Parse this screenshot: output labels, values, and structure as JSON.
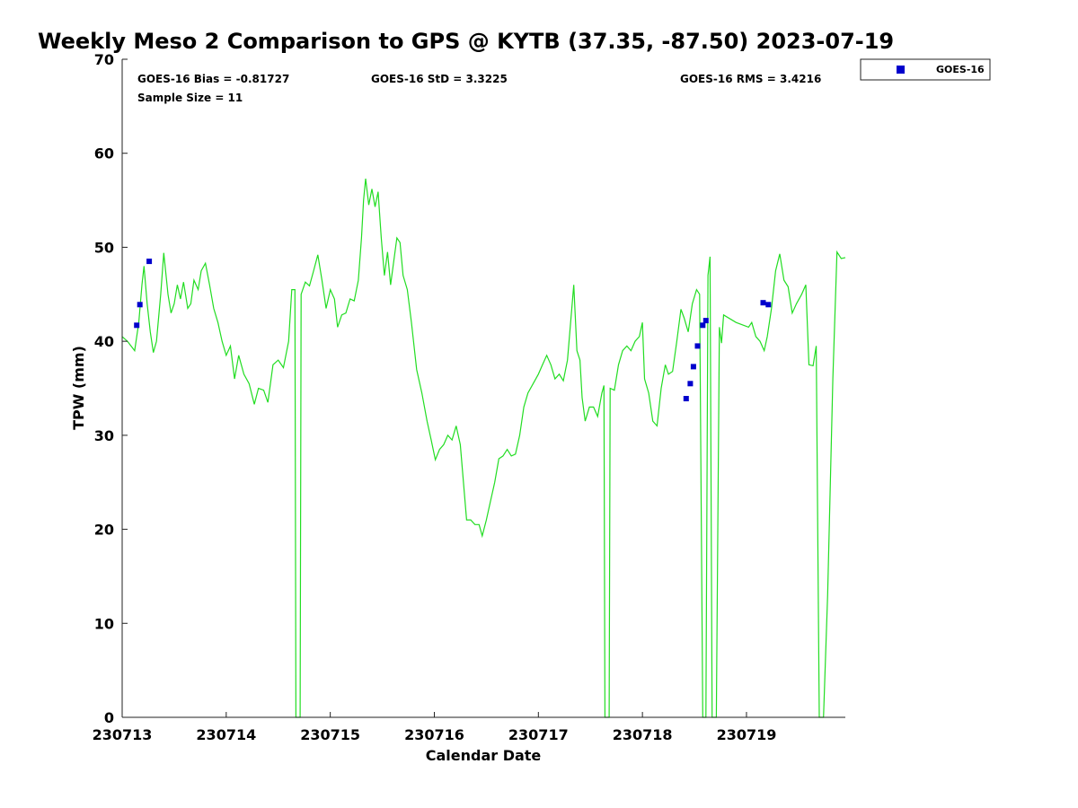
{
  "chart_data": {
    "type": "line",
    "title": "Weekly Meso 2 Comparison to GPS @ KYTB (37.35, -87.50) 2023-07-19",
    "xlabel": "Calendar Date",
    "ylabel": "TPW (mm)",
    "xlim": [
      230713.0,
      230719.95
    ],
    "ylim": [
      0,
      70
    ],
    "x_ticks": [
      {
        "value": 230713,
        "label": "230713"
      },
      {
        "value": 230714,
        "label": "230714"
      },
      {
        "value": 230715,
        "label": "230715"
      },
      {
        "value": 230716,
        "label": "230716"
      },
      {
        "value": 230717,
        "label": "230717"
      },
      {
        "value": 230718,
        "label": "230718"
      },
      {
        "value": 230719,
        "label": "230719"
      }
    ],
    "y_ticks": [
      0,
      10,
      20,
      30,
      40,
      50,
      60,
      70
    ],
    "grid": false,
    "legend_position": "outside-top-right",
    "stats": {
      "bias": "GOES-16 Bias = -0.81727",
      "std": "GOES-16 StD = 3.3225",
      "rms": "GOES-16 RMS = 3.4216",
      "sample": "Sample Size = 11"
    },
    "series": [
      {
        "kind": "line",
        "color": "#22dd22",
        "points": [
          [
            230713.0,
            40.5
          ],
          [
            230713.05,
            40.0
          ],
          [
            230713.12,
            39.0
          ],
          [
            230713.16,
            42.0
          ],
          [
            230713.19,
            46.0
          ],
          [
            230713.21,
            48.0
          ],
          [
            230713.24,
            44.0
          ],
          [
            230713.27,
            41.0
          ],
          [
            230713.3,
            38.8
          ],
          [
            230713.33,
            40.0
          ],
          [
            230713.37,
            45.0
          ],
          [
            230713.4,
            49.4
          ],
          [
            230713.44,
            45.0
          ],
          [
            230713.47,
            43.0
          ],
          [
            230713.5,
            44.0
          ],
          [
            230713.53,
            46.0
          ],
          [
            230713.56,
            44.5
          ],
          [
            230713.59,
            46.3
          ],
          [
            230713.63,
            43.5
          ],
          [
            230713.66,
            44.0
          ],
          [
            230713.69,
            46.5
          ],
          [
            230713.73,
            45.5
          ],
          [
            230713.76,
            47.5
          ],
          [
            230713.8,
            48.3
          ],
          [
            230713.84,
            46.0
          ],
          [
            230713.88,
            43.5
          ],
          [
            230713.92,
            42.0
          ],
          [
            230713.96,
            40.0
          ],
          [
            230714.0,
            38.5
          ],
          [
            230714.04,
            39.5
          ],
          [
            230714.08,
            36.0
          ],
          [
            230714.12,
            38.5
          ],
          [
            230714.17,
            36.5
          ],
          [
            230714.22,
            35.5
          ],
          [
            230714.27,
            33.3
          ],
          [
            230714.31,
            35.0
          ],
          [
            230714.36,
            34.8
          ],
          [
            230714.4,
            33.5
          ],
          [
            230714.45,
            37.5
          ],
          [
            230714.5,
            38.0
          ],
          [
            230714.55,
            37.2
          ],
          [
            230714.6,
            40.0
          ],
          [
            230714.63,
            45.5
          ],
          [
            230714.66,
            45.5
          ],
          [
            230714.67,
            0.0
          ],
          [
            230714.71,
            0.0
          ],
          [
            230714.72,
            45.0
          ],
          [
            230714.76,
            46.3
          ],
          [
            230714.8,
            45.9
          ],
          [
            230714.84,
            47.5
          ],
          [
            230714.88,
            49.2
          ],
          [
            230714.92,
            46.5
          ],
          [
            230714.96,
            43.5
          ],
          [
            230715.0,
            45.5
          ],
          [
            230715.04,
            44.5
          ],
          [
            230715.07,
            41.5
          ],
          [
            230715.11,
            42.8
          ],
          [
            230715.15,
            43.0
          ],
          [
            230715.19,
            44.5
          ],
          [
            230715.23,
            44.3
          ],
          [
            230715.27,
            46.5
          ],
          [
            230715.3,
            51.0
          ],
          [
            230715.32,
            55.0
          ],
          [
            230715.34,
            57.3
          ],
          [
            230715.37,
            54.5
          ],
          [
            230715.4,
            56.2
          ],
          [
            230715.43,
            54.3
          ],
          [
            230715.46,
            55.9
          ],
          [
            230715.49,
            51.0
          ],
          [
            230715.52,
            47.0
          ],
          [
            230715.55,
            49.5
          ],
          [
            230715.58,
            46.0
          ],
          [
            230715.61,
            48.5
          ],
          [
            230715.64,
            51.0
          ],
          [
            230715.67,
            50.5
          ],
          [
            230715.7,
            47.0
          ],
          [
            230715.74,
            45.5
          ],
          [
            230715.78,
            42.0
          ],
          [
            230715.83,
            37.0
          ],
          [
            230715.88,
            34.5
          ],
          [
            230715.93,
            31.5
          ],
          [
            230715.97,
            29.5
          ],
          [
            230716.01,
            27.4
          ],
          [
            230716.05,
            28.5
          ],
          [
            230716.09,
            29.0
          ],
          [
            230716.13,
            30.0
          ],
          [
            230716.17,
            29.5
          ],
          [
            230716.21,
            31.0
          ],
          [
            230716.25,
            29.0
          ],
          [
            230716.28,
            25.0
          ],
          [
            230716.31,
            21.0
          ],
          [
            230716.35,
            21.0
          ],
          [
            230716.39,
            20.5
          ],
          [
            230716.43,
            20.5
          ],
          [
            230716.46,
            19.3
          ],
          [
            230716.5,
            21.0
          ],
          [
            230716.54,
            23.0
          ],
          [
            230716.58,
            25.0
          ],
          [
            230716.62,
            27.5
          ],
          [
            230716.66,
            27.8
          ],
          [
            230716.7,
            28.5
          ],
          [
            230716.74,
            27.8
          ],
          [
            230716.78,
            28.0
          ],
          [
            230716.82,
            30.0
          ],
          [
            230716.86,
            33.0
          ],
          [
            230716.9,
            34.5
          ],
          [
            230716.95,
            35.5
          ],
          [
            230717.0,
            36.5
          ],
          [
            230717.04,
            37.5
          ],
          [
            230717.08,
            38.5
          ],
          [
            230717.12,
            37.5
          ],
          [
            230717.16,
            36.0
          ],
          [
            230717.2,
            36.5
          ],
          [
            230717.24,
            35.8
          ],
          [
            230717.28,
            38.0
          ],
          [
            230717.31,
            42.0
          ],
          [
            230717.34,
            46.0
          ],
          [
            230717.37,
            39.0
          ],
          [
            230717.4,
            38.0
          ],
          [
            230717.42,
            34.0
          ],
          [
            230717.45,
            31.5
          ],
          [
            230717.49,
            33.0
          ],
          [
            230717.53,
            33.0
          ],
          [
            230717.57,
            32.0
          ],
          [
            230717.61,
            34.5
          ],
          [
            230717.63,
            35.3
          ],
          [
            230717.64,
            0.0
          ],
          [
            230717.68,
            0.0
          ],
          [
            230717.69,
            35.0
          ],
          [
            230717.73,
            34.8
          ],
          [
            230717.77,
            37.5
          ],
          [
            230717.81,
            39.0
          ],
          [
            230717.85,
            39.5
          ],
          [
            230717.89,
            39.0
          ],
          [
            230717.93,
            40.0
          ],
          [
            230717.97,
            40.5
          ],
          [
            230718.0,
            42.0
          ],
          [
            230718.02,
            36.0
          ],
          [
            230718.06,
            34.5
          ],
          [
            230718.1,
            31.5
          ],
          [
            230718.14,
            31.0
          ],
          [
            230718.18,
            35.0
          ],
          [
            230718.22,
            37.5
          ],
          [
            230718.25,
            36.5
          ],
          [
            230718.29,
            36.8
          ],
          [
            230718.33,
            40.0
          ],
          [
            230718.37,
            43.4
          ],
          [
            230718.4,
            42.5
          ],
          [
            230718.44,
            41.0
          ],
          [
            230718.48,
            44.0
          ],
          [
            230718.52,
            45.5
          ],
          [
            230718.55,
            45.0
          ],
          [
            230718.58,
            0.0
          ],
          [
            230718.61,
            0.0
          ],
          [
            230718.63,
            47.0
          ],
          [
            230718.65,
            49.0
          ],
          [
            230718.67,
            0.0
          ],
          [
            230718.71,
            0.0
          ],
          [
            230718.74,
            41.5
          ],
          [
            230718.76,
            39.8
          ],
          [
            230718.78,
            42.8
          ],
          [
            230718.9,
            42.0
          ],
          [
            230719.02,
            41.5
          ],
          [
            230719.05,
            42.0
          ],
          [
            230719.09,
            40.5
          ],
          [
            230719.13,
            40.0
          ],
          [
            230719.17,
            39.0
          ],
          [
            230719.2,
            40.5
          ],
          [
            230719.24,
            43.5
          ],
          [
            230719.28,
            47.5
          ],
          [
            230719.32,
            49.3
          ],
          [
            230719.36,
            46.5
          ],
          [
            230719.4,
            45.8
          ],
          [
            230719.44,
            43.0
          ],
          [
            230719.48,
            44.0
          ],
          [
            230719.53,
            45.0
          ],
          [
            230719.57,
            46.0
          ],
          [
            230719.6,
            37.5
          ],
          [
            230719.64,
            37.4
          ],
          [
            230719.67,
            39.5
          ],
          [
            230719.7,
            0.0
          ],
          [
            230719.74,
            0.0
          ],
          [
            230719.78,
            13.0
          ],
          [
            230719.83,
            36.0
          ],
          [
            230719.87,
            49.5
          ],
          [
            230719.91,
            48.8
          ],
          [
            230719.95,
            48.9
          ]
        ]
      },
      {
        "kind": "scatter",
        "name": "GOES-16",
        "color": "#0000cc",
        "points": [
          [
            230713.14,
            41.7
          ],
          [
            230713.17,
            43.9
          ],
          [
            230713.26,
            48.5
          ],
          [
            230718.42,
            33.9
          ],
          [
            230718.46,
            35.5
          ],
          [
            230718.49,
            37.3
          ],
          [
            230718.53,
            39.5
          ],
          [
            230718.58,
            41.7
          ],
          [
            230718.61,
            42.2
          ],
          [
            230719.16,
            44.1
          ],
          [
            230719.21,
            43.9
          ]
        ]
      }
    ]
  }
}
